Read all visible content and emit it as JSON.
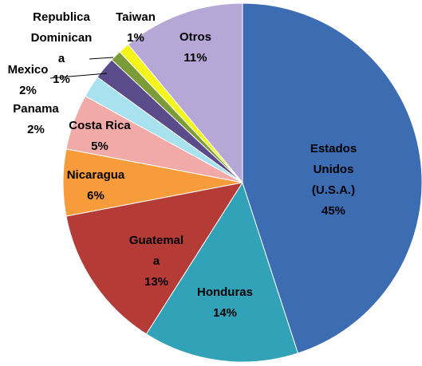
{
  "chart_data": {
    "type": "pie",
    "categories": [
      "Estados Unidos (U.S.A.)",
      "Honduras",
      "Guatemala",
      "Nicaragua",
      "Costa Rica",
      "Panama",
      "Mexico",
      "Republica Dominicana",
      "Taiwan",
      "Otros"
    ],
    "values": [
      45,
      14,
      13,
      6,
      5,
      2,
      2,
      1,
      1,
      11
    ],
    "value_labels": [
      "45%",
      "14%",
      "13%",
      "6%",
      "5%",
      "2%",
      "2%",
      "1%",
      "1%",
      "11%"
    ],
    "colors": [
      "#3c6cb2",
      "#31a2b7",
      "#b53b37",
      "#f79b3b",
      "#f2aaa8",
      "#a9e2ef",
      "#5a4b8a",
      "#7b9b39",
      "#f5f51c",
      "#b6a7d6"
    ]
  }
}
